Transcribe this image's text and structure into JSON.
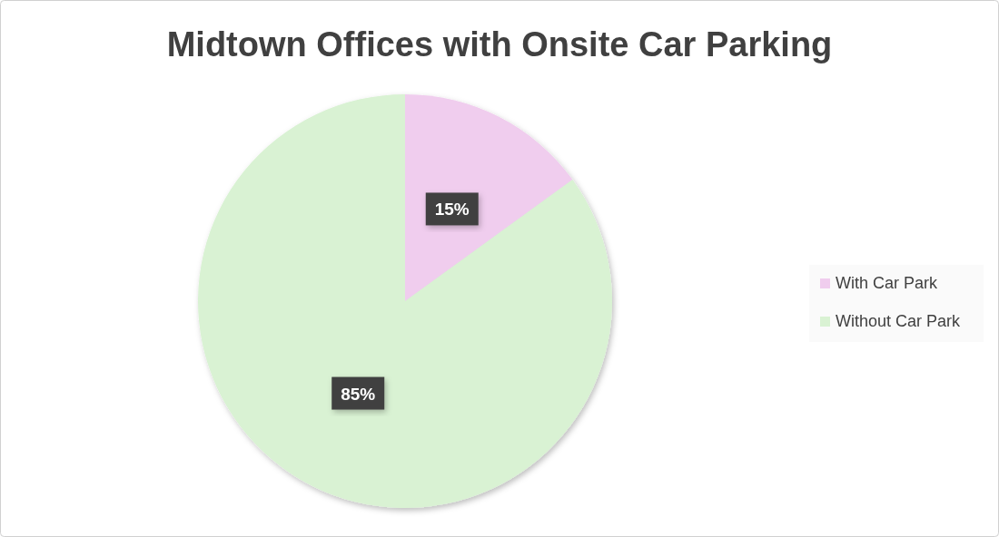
{
  "chart_data": {
    "type": "pie",
    "title": "Midtown Offices with Onsite Car Parking",
    "categories": [
      "With Car Park",
      "Without Car Park"
    ],
    "values": [
      15,
      85
    ],
    "colors": [
      "#f0cdee",
      "#d9f2d3"
    ],
    "value_labels": [
      "15%",
      "85%"
    ],
    "legend": "right"
  }
}
